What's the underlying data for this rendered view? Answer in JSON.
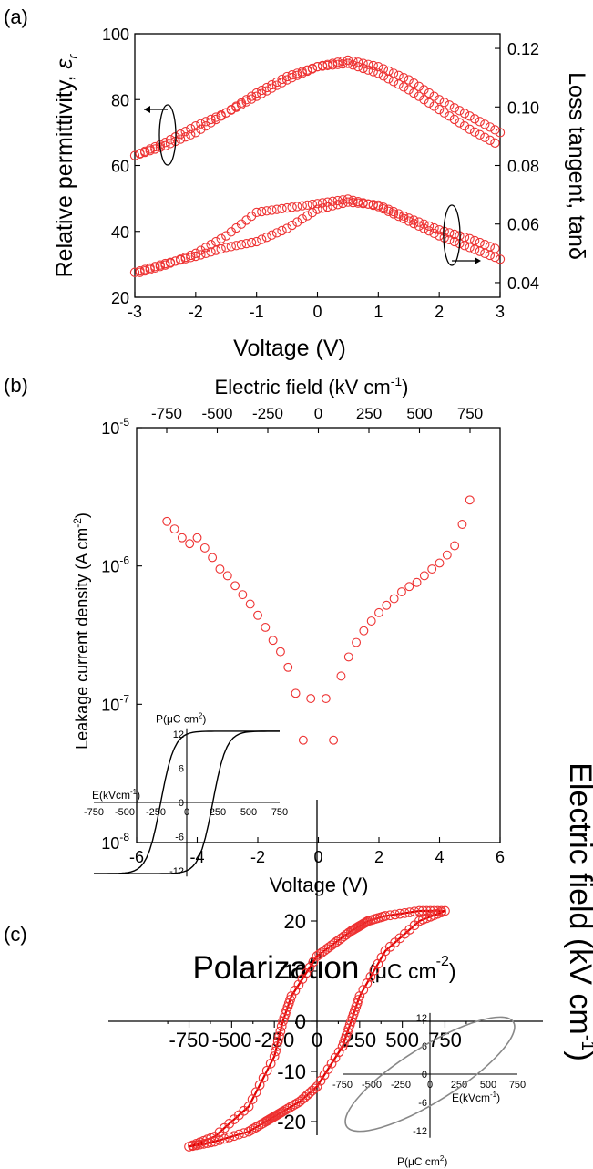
{
  "colors": {
    "marker": "#e33333",
    "hysteresis_line": "#e00000",
    "inset_black": "#000000",
    "inset_gray": "#888888"
  },
  "panels": {
    "a": {
      "label": "(a)",
      "xlabel": "Voltage (V)",
      "ylabel_left": "Relative permittivity, ",
      "ylabel_left_symbol": "ε",
      "ylabel_left_sub": "r",
      "ylabel_right": "Loss tangent, tanδ"
    },
    "b": {
      "label": "(b)",
      "xlabel": "Voltage (V)",
      "ylabel": "Leakage current density (A cm",
      "ylabel_sup": "-2",
      "ylabel_end": ")",
      "top_axis_label": "Electric field (kV cm",
      "top_axis_sup": "-1",
      "top_axis_end": ")"
    },
    "c": {
      "label": "(c)",
      "title": "Polarization ",
      "title_small": "(μC cm",
      "title_sup": "-2",
      "title_end": ")",
      "right_label": "Electric field (kV cm",
      "right_sup": "-1",
      "right_end": ")",
      "inset1_ylabel": "P(μC cm",
      "inset1_ysup": "2",
      "inset1_yend": ")",
      "inset1_xlabel": "E(kVcm",
      "inset1_xsup": "-1",
      "inset1_xend": ")",
      "inset2_xlabel": "E(kVcm",
      "inset2_xsup": "-1",
      "inset2_xend": ")",
      "inset2_ylabel": "P(μC cm",
      "inset2_ysup": "2",
      "inset2_yend": ")"
    }
  },
  "chart_data": [
    {
      "panel": "a",
      "type": "scatter",
      "x_ticks": [
        "-3",
        "-2",
        "-1",
        "0",
        "1",
        "2",
        "3"
      ],
      "yleft_ticks": [
        "20",
        "40",
        "60",
        "80",
        "100"
      ],
      "yright_ticks": [
        "0.04",
        "0.06",
        "0.08",
        "0.10",
        "0.12"
      ],
      "xlim": [
        -3,
        3
      ],
      "ylim_left": [
        20,
        100
      ],
      "ylim_right": [
        0.035,
        0.125
      ],
      "series": [
        {
          "axis": "left",
          "branch": "forward",
          "x": [
            -3,
            -2.5,
            -2,
            -1.5,
            -1,
            -0.5,
            0,
            0.5,
            1,
            1.5,
            2,
            2.5,
            3
          ],
          "y": [
            63,
            66,
            70,
            76,
            82,
            87,
            90,
            91,
            88,
            83,
            77,
            71,
            66
          ]
        },
        {
          "axis": "left",
          "branch": "reverse",
          "x": [
            3,
            2.5,
            2,
            1.5,
            1,
            0.5,
            0,
            -0.5,
            -1,
            -1.5,
            -2,
            -2.5,
            -3
          ],
          "y": [
            70,
            75,
            80,
            86,
            90,
            92,
            90,
            86,
            81,
            76,
            72,
            67,
            63
          ]
        },
        {
          "axis": "right",
          "branch": "forward",
          "x": [
            -3,
            -2.5,
            -2,
            -1.5,
            -1,
            -0.5,
            0,
            0.5,
            1,
            1.5,
            2,
            2.5,
            3
          ],
          "y": [
            0.0435,
            0.0465,
            0.049,
            0.052,
            0.054,
            0.0585,
            0.065,
            0.0675,
            0.0665,
            0.062,
            0.058,
            0.055,
            0.051
          ]
        },
        {
          "axis": "right",
          "branch": "reverse",
          "x": [
            3,
            2.5,
            2,
            1.5,
            1,
            0.5,
            0,
            -0.5,
            -1,
            -1.5,
            -2,
            -2.5,
            -3
          ],
          "y": [
            0.048,
            0.052,
            0.056,
            0.061,
            0.066,
            0.0685,
            0.067,
            0.0655,
            0.064,
            0.056,
            0.05,
            0.046,
            0.043
          ]
        }
      ]
    },
    {
      "panel": "b",
      "type": "scatter",
      "y_scale": "log",
      "x_ticks": [
        "-6",
        "-4",
        "-2",
        "0",
        "2",
        "4",
        "6"
      ],
      "top_ticks": [
        "-750",
        "-500",
        "-250",
        "0",
        "250",
        "500",
        "750"
      ],
      "y_ticks": [
        "10-8",
        "10-7",
        "10-6",
        "10-5"
      ],
      "xlim": [
        -6,
        6
      ],
      "ylim": [
        1e-08,
        1e-05
      ],
      "series": [
        {
          "x": [
            -5,
            -4.75,
            -4.5,
            -4.25,
            -4,
            -3.75,
            -3.5,
            -3.25,
            -3,
            -2.75,
            -2.5,
            -2.25,
            -2,
            -1.75,
            -1.5,
            -1.25,
            -1,
            -0.75,
            -0.5,
            -0.25,
            0.25,
            0.5,
            0.75,
            1,
            1.25,
            1.5,
            1.75,
            2,
            2.25,
            2.5,
            2.75,
            3,
            3.25,
            3.5,
            3.75,
            4,
            4.25,
            4.5,
            4.75,
            5
          ],
          "y": [
            2.1e-06,
            1.85e-06,
            1.6e-06,
            1.45e-06,
            1.6e-06,
            1.35e-06,
            1.15e-06,
            9.5e-07,
            8.5e-07,
            7.2e-07,
            6.2e-07,
            5.3e-07,
            4.4e-07,
            3.6e-07,
            2.9e-07,
            2.4e-07,
            1.85e-07,
            1.2e-07,
            5.5e-08,
            1.1e-07,
            1.1e-07,
            5.5e-08,
            1.6e-07,
            2.2e-07,
            2.8e-07,
            3.4e-07,
            4e-07,
            4.6e-07,
            5.2e-07,
            5.8e-07,
            6.5e-07,
            7.1e-07,
            7.6e-07,
            8.5e-07,
            9.5e-07,
            1.05e-06,
            1.2e-06,
            1.4e-06,
            2e-06,
            3e-06
          ]
        }
      ]
    },
    {
      "panel": "c",
      "type": "line",
      "x_ticks": [
        "-750",
        "-500",
        "-250",
        "0",
        "250",
        "500",
        "750"
      ],
      "y_ticks": [
        "-20",
        "-10",
        "0",
        "10",
        "20"
      ],
      "xlim": [
        -900,
        900
      ],
      "ylim": [
        -25,
        25
      ],
      "series": [
        {
          "name": "",
          "x": [
            -750,
            -600,
            -400,
            -250,
            -200,
            -150,
            0,
            100,
            200,
            250,
            300,
            400,
            600,
            750
          ],
          "y": [
            -25,
            -23,
            -17,
            -7,
            0,
            5,
            13,
            15.5,
            18,
            19,
            20,
            21,
            22,
            22
          ]
        },
        {
          "name": "",
          "x": [
            750,
            600,
            400,
            250,
            200,
            150,
            0,
            -100,
            -200,
            -250,
            -300,
            -400,
            -600,
            -750
          ],
          "y": [
            22,
            20,
            14,
            5,
            0,
            -5,
            -13,
            -16,
            -18,
            -19,
            -20,
            -22,
            -24,
            -25
          ]
        }
      ],
      "inset1": {
        "x_ticks": [
          "-750",
          "-500",
          "-250",
          "0",
          "250",
          "500",
          "750"
        ],
        "y_ticks": [
          "-12",
          "-6",
          "0",
          "6",
          "12"
        ]
      },
      "inset2": {
        "x_ticks": [
          "-750",
          "-500",
          "-250",
          "0",
          "250",
          "500",
          "750"
        ],
        "y_ticks": [
          "-12",
          "-6",
          "0",
          "6",
          "12"
        ]
      }
    }
  ]
}
